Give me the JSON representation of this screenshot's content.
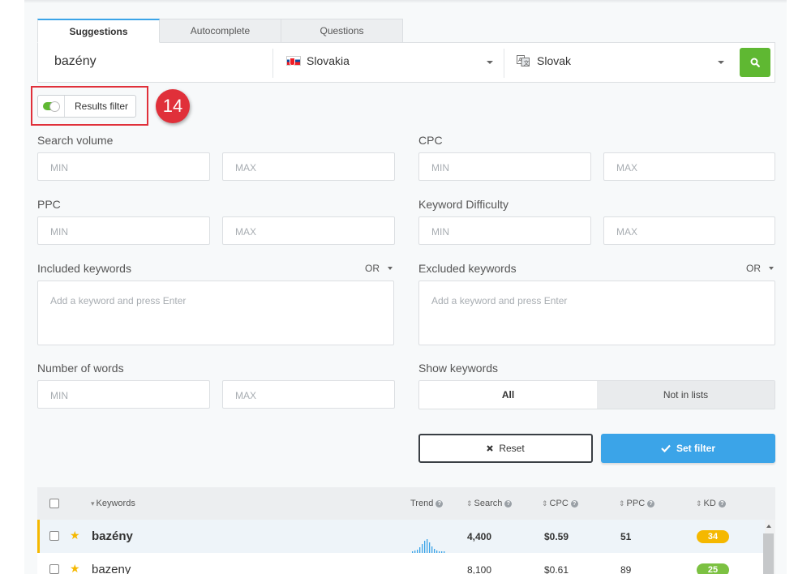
{
  "tabs": [
    {
      "label": "Suggestions",
      "active": true
    },
    {
      "label": "Autocomplete",
      "active": false
    },
    {
      "label": "Questions",
      "active": false
    }
  ],
  "search": {
    "keyword": "bazény",
    "location": "Slovakia",
    "language": "Slovak"
  },
  "results_filter": {
    "label": "Results filter",
    "enabled": true,
    "annotation_number": "14"
  },
  "filters": {
    "search_volume": {
      "label": "Search volume",
      "min_placeholder": "MIN",
      "max_placeholder": "MAX"
    },
    "cpc": {
      "label": "CPC",
      "min_placeholder": "MIN",
      "max_placeholder": "MAX"
    },
    "ppc": {
      "label": "PPC",
      "min_placeholder": "MIN",
      "max_placeholder": "MAX"
    },
    "kd": {
      "label": "Keyword Difficulty",
      "min_placeholder": "MIN",
      "max_placeholder": "MAX"
    },
    "included": {
      "label": "Included keywords",
      "operator": "OR",
      "placeholder": "Add a keyword and press Enter"
    },
    "excluded": {
      "label": "Excluded keywords",
      "operator": "OR",
      "placeholder": "Add a keyword and press Enter"
    },
    "num_words": {
      "label": "Number of words",
      "min_placeholder": "MIN",
      "max_placeholder": "MAX"
    },
    "show_keywords": {
      "label": "Show keywords",
      "options": [
        "All",
        "Not in lists"
      ],
      "selected": "All"
    }
  },
  "buttons": {
    "reset": "Reset",
    "set_filter": "Set filter"
  },
  "table": {
    "headers": {
      "keywords": "Keywords",
      "trend": "Trend",
      "search": "Search",
      "cpc": "CPC",
      "ppc": "PPC",
      "kd": "KD"
    },
    "rows": [
      {
        "keyword": "bazény",
        "search": "4,400",
        "cpc": "$0.59",
        "ppc": "51",
        "kd": "34",
        "kd_color": "#f5b800",
        "starred": true
      },
      {
        "keyword": "bazeny",
        "search": "8,100",
        "cpc": "$0.61",
        "ppc": "89",
        "kd": "25",
        "kd_color": "#7cc142",
        "starred": true
      }
    ]
  },
  "colors": {
    "accent_blue": "#3ba4e8",
    "green": "#5fb832",
    "annotation_red": "#e0303a"
  },
  "icons": {
    "search_button": "search-icon",
    "reset": "close-icon",
    "set_filter": "check-icon",
    "star": "star-icon",
    "help": "question-icon"
  }
}
